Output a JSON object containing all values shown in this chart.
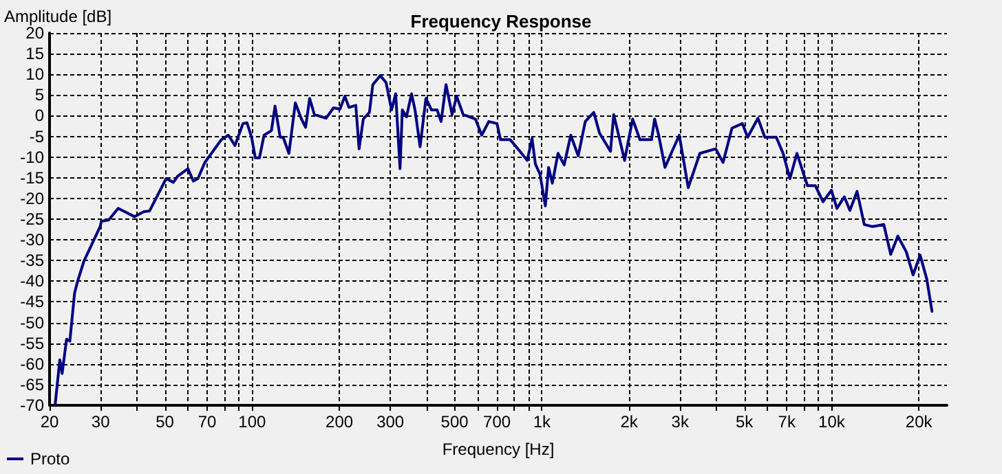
{
  "chart_data": {
    "type": "line",
    "title": "Frequency Response",
    "xlabel": "Frequency [Hz]",
    "ylabel": "Amplitude [dB]",
    "log": "x",
    "grid": true,
    "legend": "bottom left",
    "marker": "none",
    "line_style": "solid",
    "xlim": [
      20,
      25000
    ],
    "ylim": [
      -70,
      20
    ],
    "xticks": [
      20,
      30,
      {
        "value": 40,
        "label": null
      },
      50,
      {
        "value": 60,
        "label": null
      },
      70,
      {
        "value": 80,
        "label": null
      },
      {
        "value": 90,
        "label": null
      },
      100,
      200,
      300,
      {
        "value": 400,
        "label": null
      },
      500,
      {
        "value": 600,
        "label": null
      },
      700,
      {
        "value": 800,
        "label": null
      },
      {
        "value": 900,
        "label": null
      },
      {
        "value": 1000,
        "label": "1k"
      },
      {
        "value": 2000,
        "label": "2k"
      },
      {
        "value": 3000,
        "label": "3k"
      },
      {
        "value": 4000,
        "label": null
      },
      {
        "value": 5000,
        "label": "5k"
      },
      {
        "value": 6000,
        "label": null
      },
      {
        "value": 7000,
        "label": "7k"
      },
      {
        "value": 8000,
        "label": null
      },
      {
        "value": 9000,
        "label": null
      },
      {
        "value": 10000,
        "label": "10k"
      },
      {
        "value": 20000,
        "label": "20k"
      }
    ],
    "yticks": [
      -70,
      -65,
      -60,
      -55,
      -50,
      -45,
      -40,
      -35,
      -30,
      -25,
      -20,
      -15,
      -10,
      -5,
      0,
      5,
      10,
      15,
      20
    ],
    "series": [
      {
        "name": "Proto",
        "color": "#000080",
        "x": [
          20.9,
          21.7,
          22.1,
          22.9,
          23.5,
          24.4,
          25.0,
          26.3,
          29.9,
          30.2,
          32.0,
          34.5,
          35.9,
          39.3,
          42.2,
          44.3,
          50.5,
          53.5,
          55.4,
          60.1,
          62.7,
          65.0,
          68.7,
          78.3,
          82.8,
          87.3,
          93,
          96,
          99.6,
          102.6,
          106,
          110,
          116.6,
          120,
          125,
          128,
          134,
          141,
          148,
          153,
          158,
          164,
          180,
          191,
          201,
          209,
          216,
          228,
          234,
          242,
          254,
          261,
          277,
          290,
          303,
          313,
          324,
          330,
          341,
          355,
          365,
          380,
          398,
          416,
          435,
          449,
          467,
          490,
          508,
          535,
          590,
          620,
          656,
          700,
          720,
          778,
          840,
          890,
          925,
          950,
          985,
          1028,
          1055,
          1087,
          1137,
          1194,
          1258,
          1335,
          1412,
          1511,
          1581,
          1725,
          1770,
          1930,
          2057,
          2180,
          2390,
          2450,
          2530,
          2660,
          2980,
          3200,
          3510,
          3980,
          4220,
          4530,
          4920,
          5130,
          5570,
          5880,
          6440,
          6800,
          7180,
          7590,
          8250,
          8780,
          9340,
          9980,
          10430,
          11060,
          11560,
          12240,
          12960,
          13830,
          15140,
          15990,
          16920,
          18100,
          19100,
          20200,
          21300,
          22200
        ],
        "values": [
          -70,
          -59,
          -62.3,
          -54,
          -54.5,
          -42.9,
          -40,
          -35.1,
          -26.8,
          -25.5,
          -25.2,
          -22.4,
          -23,
          -24.4,
          -23.2,
          -23,
          -15.2,
          -16.1,
          -14.6,
          -12.8,
          -15.8,
          -15.2,
          -11.3,
          -5.8,
          -4.7,
          -7.2,
          -1.9,
          -1.7,
          -5.2,
          -10.2,
          -10.2,
          -4.7,
          -3.6,
          2.3,
          -5.2,
          -5.2,
          -9.1,
          3.1,
          -0.8,
          -2.8,
          4.2,
          0.3,
          -0.6,
          1.9,
          1.6,
          4.7,
          2.0,
          2.5,
          -8.0,
          -0.8,
          0.8,
          7.5,
          9.7,
          8.0,
          1.4,
          5.3,
          -12.8,
          1.4,
          -0.3,
          5.3,
          1.4,
          -7.5,
          4.2,
          1.4,
          1.4,
          -1.4,
          7.5,
          0.3,
          4.7,
          0.3,
          -0.8,
          -4.7,
          -1.4,
          -1.9,
          -5.8,
          -5.8,
          -8.6,
          -10.8,
          -5.5,
          -11.7,
          -14.1,
          -21.8,
          -12.5,
          -16.3,
          -9.1,
          -11.9,
          -4.7,
          -9.7,
          -1.4,
          0.8,
          -4.2,
          -8.6,
          0.3,
          -10.8,
          -0.8,
          -5.8,
          -5.8,
          -0.8,
          -4.7,
          -12.5,
          -4.7,
          -17.4,
          -9.1,
          -8.0,
          -11.3,
          -3.0,
          -1.9,
          -5.2,
          -0.6,
          -5.2,
          -5.2,
          -9.1,
          -15.2,
          -9.1,
          -16.9,
          -16.9,
          -20.8,
          -18.0,
          -22.4,
          -19.6,
          -22.9,
          -18.3,
          -26.3,
          -26.8,
          -26.3,
          -33.5,
          -29.1,
          -32.9,
          -38.5,
          -33.7,
          -39.5,
          -47.3
        ]
      }
    ]
  }
}
